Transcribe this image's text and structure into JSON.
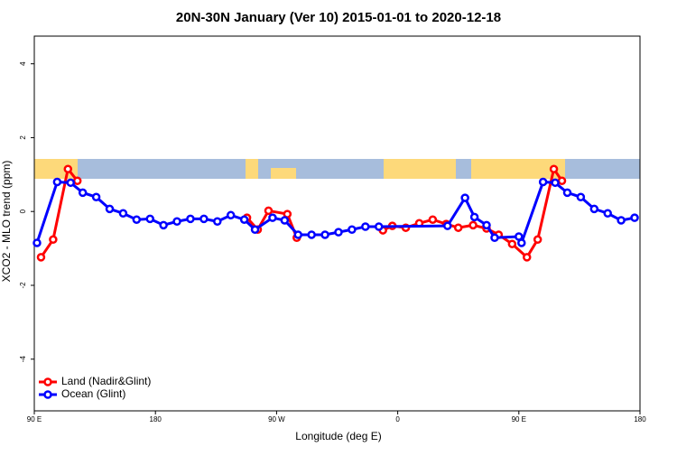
{
  "chart_data": {
    "type": "line",
    "title": "20N-30N January (Ver 10)   2015-01-01 to 2020-12-18",
    "x_label": "Longitude (deg E)",
    "y_label": "XCO2 - MLO trend (ppm)",
    "xlim": [
      90,
      540
    ],
    "ylim": [
      -5.4,
      4.75
    ],
    "xticks": [
      {
        "value": 90,
        "label": "90 E"
      },
      180,
      {
        "value": 270,
        "label": "90 W"
      },
      {
        "value": 360,
        "label": "0"
      },
      {
        "value": 450,
        "label": "90 E"
      },
      {
        "value": 540,
        "label": "180"
      }
    ],
    "yticks": [
      -4,
      -2,
      0,
      2,
      4
    ],
    "legend": "bottom-left",
    "series": [
      {
        "name": "Land (Nadir&Glint)",
        "color": "#ff0000",
        "x": [
          95,
          104,
          115,
          122,
          null,
          248,
          256,
          264,
          278,
          285,
          null,
          349,
          356,
          366,
          376,
          386,
          396,
          405,
          416,
          426,
          435,
          445,
          456,
          464,
          476,
          482
        ],
        "values": [
          -1.24,
          -0.76,
          1.15,
          0.83,
          null,
          -0.17,
          -0.49,
          0.02,
          -0.07,
          -0.71,
          null,
          -0.51,
          -0.39,
          -0.44,
          -0.32,
          -0.22,
          -0.34,
          -0.44,
          -0.37,
          -0.46,
          -0.63,
          -0.88,
          -1.24,
          -0.76,
          1.15,
          0.83
        ]
      },
      {
        "name": "Ocean (Glint)",
        "color": "#0000ff",
        "x": [
          92,
          107,
          117,
          126,
          136,
          146,
          156,
          166,
          176,
          186,
          196,
          206,
          216,
          226,
          236,
          246,
          254,
          267,
          276,
          286,
          296,
          306,
          316,
          326,
          336,
          346,
          397,
          410,
          417,
          426,
          432,
          450,
          452,
          468,
          477,
          486,
          496,
          506,
          516,
          526,
          536
        ],
        "values": [
          -0.85,
          0.8,
          0.78,
          0.51,
          0.39,
          0.07,
          -0.05,
          -0.22,
          -0.2,
          -0.37,
          -0.27,
          -0.2,
          -0.2,
          -0.27,
          -0.1,
          -0.22,
          -0.49,
          -0.17,
          -0.24,
          -0.63,
          -0.63,
          -0.63,
          -0.56,
          -0.49,
          -0.41,
          -0.41,
          -0.39,
          0.37,
          -0.15,
          -0.37,
          -0.71,
          -0.68,
          -0.85,
          0.8,
          0.78,
          0.51,
          0.39,
          0.07,
          -0.05,
          -0.24,
          -0.17
        ]
      }
    ]
  }
}
